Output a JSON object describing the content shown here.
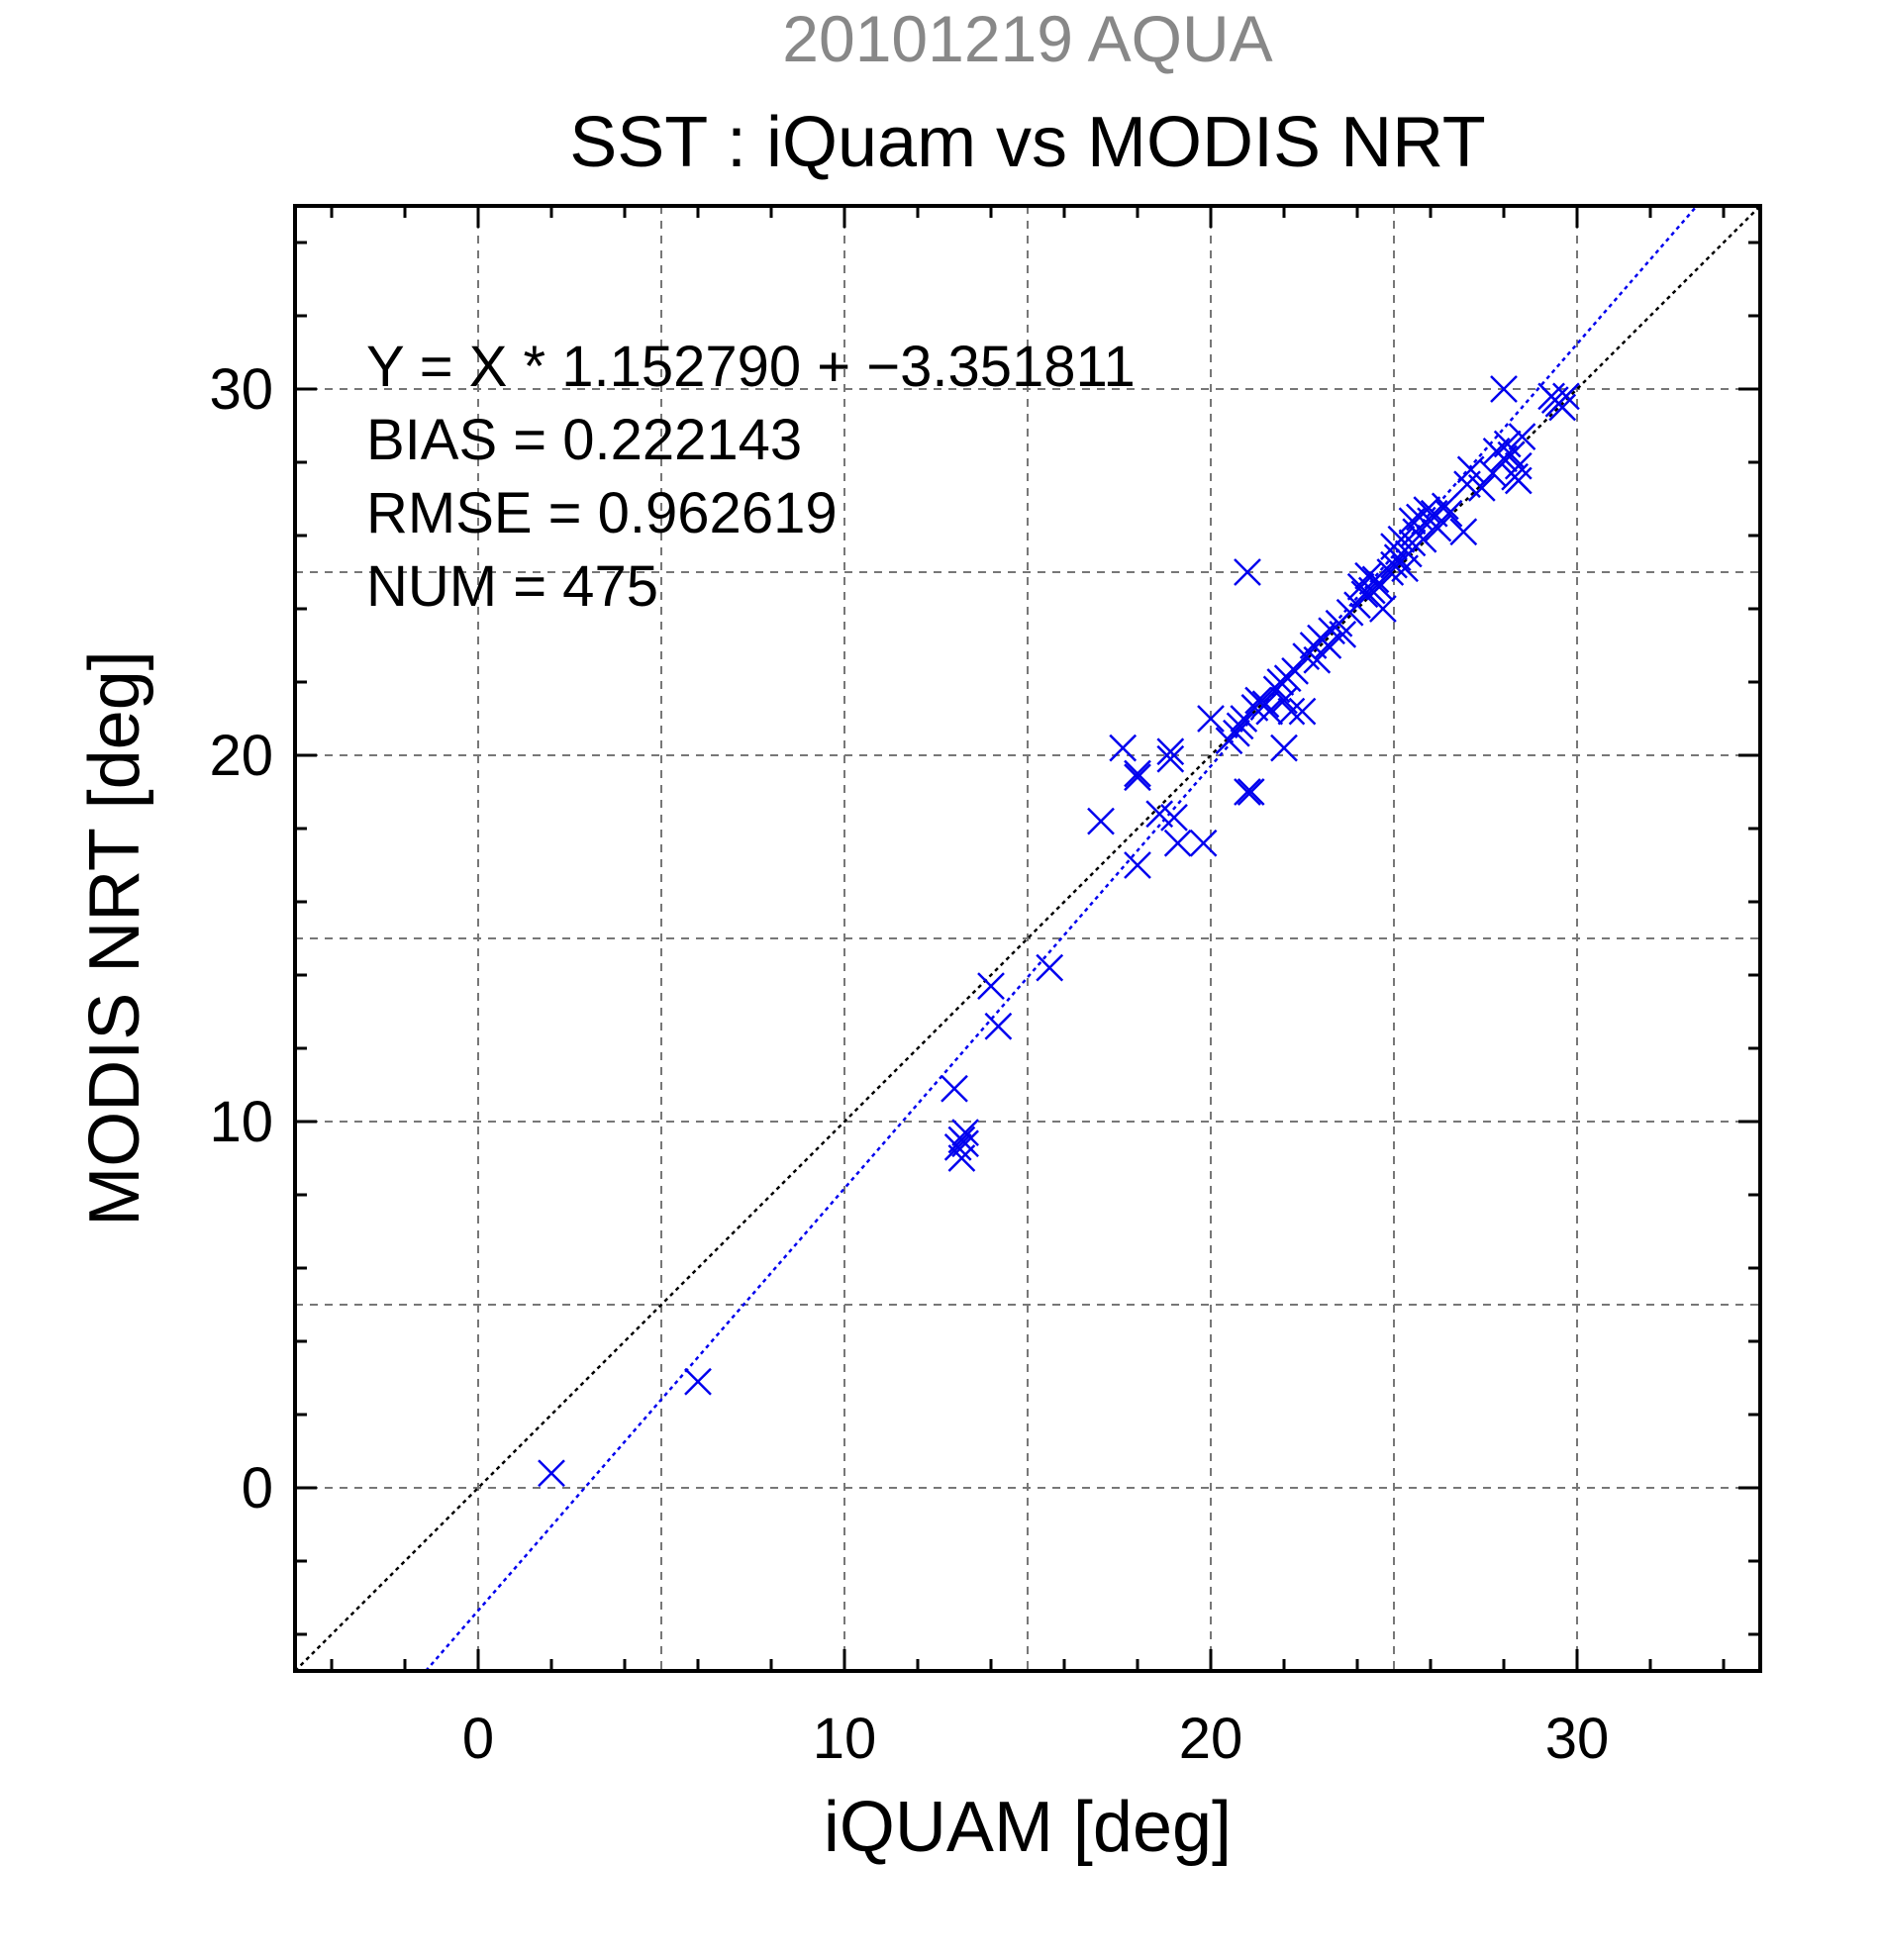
{
  "chart_data": {
    "type": "scatter",
    "title": "SST : iQuam vs MODIS NRT",
    "subtitle": "20101219 AQUA",
    "xlabel": "iQUAM [deg]",
    "ylabel": "MODIS NRT [deg]",
    "xlim": [
      -5,
      35
    ],
    "ylim": [
      -5,
      35
    ],
    "xticks": [
      0,
      10,
      20,
      30
    ],
    "yticks": [
      0,
      10,
      20,
      30
    ],
    "xtick_labels": [
      "0",
      "10",
      "20",
      "30"
    ],
    "ytick_labels": [
      "0",
      "10",
      "20",
      "30"
    ],
    "grid": true,
    "annotations": [
      "Y = X * 1.152790 + −3.351811",
      "BIAS = 0.222143",
      "RMSE = 0.962619",
      "NUM = 475"
    ],
    "reference_lines": [
      {
        "slope": 1.0,
        "intercept": 0.0,
        "color": "#000000",
        "style": "dotted"
      },
      {
        "slope": 1.15279,
        "intercept": -3.351811,
        "color": "#0000ee",
        "style": "dotted"
      }
    ],
    "marker_color": "#0000ee",
    "marker": "x",
    "points": [
      [
        2.0,
        0.4
      ],
      [
        6.0,
        2.9
      ],
      [
        13.0,
        10.9
      ],
      [
        13.2,
        9.5
      ],
      [
        13.3,
        9.7
      ],
      [
        13.1,
        9.3
      ],
      [
        13.2,
        9.0
      ],
      [
        13.3,
        9.4
      ],
      [
        14.0,
        13.7
      ],
      [
        14.2,
        12.6
      ],
      [
        15.6,
        14.2
      ],
      [
        17.0,
        18.2
      ],
      [
        17.6,
        20.2
      ],
      [
        18.0,
        19.5
      ],
      [
        18.0,
        19.4
      ],
      [
        18.0,
        17.0
      ],
      [
        18.6,
        18.4
      ],
      [
        18.9,
        20.1
      ],
      [
        18.9,
        19.9
      ],
      [
        19.1,
        17.6
      ],
      [
        19.0,
        18.3
      ],
      [
        19.8,
        17.6
      ],
      [
        20.0,
        21.0
      ],
      [
        20.5,
        20.4
      ],
      [
        20.7,
        20.6
      ],
      [
        20.8,
        20.8
      ],
      [
        20.9,
        21.0
      ],
      [
        21.0,
        25.0
      ],
      [
        21.0,
        19.0
      ],
      [
        21.1,
        19.0
      ],
      [
        21.2,
        21.3
      ],
      [
        21.3,
        21.5
      ],
      [
        21.5,
        21.4
      ],
      [
        21.6,
        21.2
      ],
      [
        21.8,
        21.8
      ],
      [
        21.9,
        22.0
      ],
      [
        22.0,
        21.5
      ],
      [
        22.0,
        20.2
      ],
      [
        22.1,
        22.1
      ],
      [
        22.2,
        21.2
      ],
      [
        22.3,
        22.3
      ],
      [
        22.5,
        21.2
      ],
      [
        22.6,
        22.7
      ],
      [
        22.8,
        23.0
      ],
      [
        22.9,
        22.6
      ],
      [
        23.0,
        23.2
      ],
      [
        23.2,
        23.0
      ],
      [
        23.3,
        23.4
      ],
      [
        23.5,
        23.6
      ],
      [
        23.6,
        23.3
      ],
      [
        23.8,
        23.9
      ],
      [
        24.0,
        24.1
      ],
      [
        24.1,
        24.6
      ],
      [
        24.2,
        24.4
      ],
      [
        24.3,
        24.9
      ],
      [
        24.4,
        24.5
      ],
      [
        24.5,
        24.8
      ],
      [
        24.6,
        24.6
      ],
      [
        24.7,
        24.0
      ],
      [
        24.9,
        25.0
      ],
      [
        25.0,
        25.2
      ],
      [
        25.0,
        25.7
      ],
      [
        25.1,
        25.4
      ],
      [
        25.2,
        25.9
      ],
      [
        25.3,
        25.1
      ],
      [
        25.4,
        25.5
      ],
      [
        25.5,
        25.8
      ],
      [
        25.5,
        26.4
      ],
      [
        25.6,
        26.1
      ],
      [
        25.7,
        26.5
      ],
      [
        25.8,
        25.9
      ],
      [
        25.9,
        26.7
      ],
      [
        26.0,
        26.4
      ],
      [
        26.1,
        26.6
      ],
      [
        26.2,
        26.2
      ],
      [
        26.4,
        26.8
      ],
      [
        26.5,
        26.6
      ],
      [
        26.9,
        26.1
      ],
      [
        27.0,
        27.4
      ],
      [
        27.1,
        27.8
      ],
      [
        27.4,
        27.3
      ],
      [
        27.7,
        27.7
      ],
      [
        27.8,
        28.3
      ],
      [
        28.0,
        28.1
      ],
      [
        28.0,
        30.0
      ],
      [
        28.1,
        28.5
      ],
      [
        28.2,
        28.2
      ],
      [
        28.3,
        27.6
      ],
      [
        28.4,
        27.9
      ],
      [
        28.4,
        27.5
      ],
      [
        28.5,
        28.7
      ],
      [
        29.3,
        29.8
      ],
      [
        29.4,
        29.7
      ],
      [
        29.5,
        29.6
      ],
      [
        29.6,
        29.5
      ],
      [
        29.7,
        29.8
      ]
    ]
  }
}
